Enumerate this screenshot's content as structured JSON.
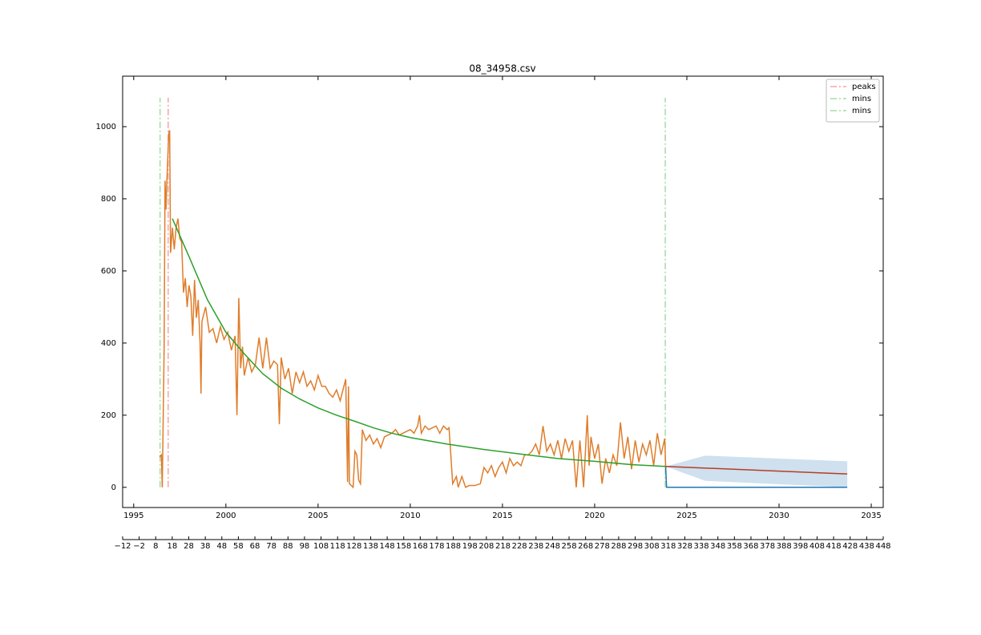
{
  "chart_data": {
    "type": "line",
    "title": "08_34958.csv",
    "xlim": [
      1994.4,
      2035.65
    ],
    "xticks": [
      1995,
      2000,
      2005,
      2010,
      2015,
      2020,
      2025,
      2030,
      2035
    ],
    "ylim": [
      -56,
      1140
    ],
    "yticks": [
      0,
      200,
      400,
      600,
      800,
      1000
    ],
    "x2lim": [
      -12,
      448
    ],
    "x2ticks": [
      {
        "value": -12,
        "label": "−12"
      },
      {
        "value": -2,
        "label": "−2"
      },
      8,
      18,
      28,
      38,
      48,
      58,
      68,
      78,
      88,
      98,
      108,
      118,
      128,
      138,
      148,
      158,
      168,
      178,
      188,
      198,
      208,
      218,
      228,
      238,
      248,
      258,
      268,
      278,
      288,
      298,
      308,
      318,
      328,
      338,
      348,
      358,
      368,
      378,
      388,
      398,
      408,
      418,
      428,
      438,
      448
    ],
    "legend": "upper right",
    "band": {
      "color": "#cfe0ef",
      "x": [
        2023.85,
        2026,
        2033.7
      ],
      "upper": [
        58,
        88,
        72
      ],
      "lower": [
        58,
        18,
        0
      ]
    },
    "lines": [
      {
        "color": "#1f77b4",
        "x": [
          2023.85,
          2023.9,
          2033.7
        ],
        "values": [
          58,
          0,
          0
        ]
      },
      {
        "color": "#df7d2a",
        "x": [
          1996.4,
          1996.5,
          1996.55,
          1996.65,
          1996.7,
          1996.75,
          1996.8,
          1996.9,
          1996.95,
          1997.0,
          1997.1,
          1997.2,
          1997.3,
          1997.4,
          1997.5,
          1997.6,
          1997.7,
          1997.8,
          1997.9,
          1998.0,
          1998.1,
          1998.2,
          1998.3,
          1998.4,
          1998.5,
          1998.6,
          1998.65,
          1998.7,
          1998.9,
          1999.1,
          1999.3,
          1999.5,
          1999.7,
          1999.9,
          2000.1,
          2000.3,
          2000.5,
          2000.6,
          2000.7,
          2000.8,
          2000.9,
          2001.0,
          2001.2,
          2001.4,
          2001.6,
          2001.8,
          2002.0,
          2002.2,
          2002.4,
          2002.6,
          2002.8,
          2002.9,
          2003.0,
          2003.2,
          2003.4,
          2003.6,
          2003.8,
          2004.0,
          2004.2,
          2004.4,
          2004.6,
          2004.8,
          2005.0,
          2005.2,
          2005.4,
          2005.6,
          2005.8,
          2006.0,
          2006.2,
          2006.4,
          2006.5,
          2006.6,
          2006.65,
          2006.7,
          2006.9,
          2007.0,
          2007.1,
          2007.2,
          2007.3,
          2007.4,
          2007.6,
          2007.8,
          2008.0,
          2008.2,
          2008.4,
          2008.6,
          2008.8,
          2009.0,
          2009.2,
          2009.4,
          2009.6,
          2009.8,
          2010.0,
          2010.2,
          2010.4,
          2010.5,
          2010.6,
          2010.8,
          2011.0,
          2011.2,
          2011.4,
          2011.6,
          2011.8,
          2012.0,
          2012.1,
          2012.2,
          2012.3,
          2012.5,
          2012.6,
          2012.8,
          2013.0,
          2013.2,
          2013.5,
          2013.8,
          2014.0,
          2014.2,
          2014.4,
          2014.6,
          2014.8,
          2015.0,
          2015.2,
          2015.4,
          2015.6,
          2015.8,
          2016.0,
          2016.2,
          2016.4,
          2016.6,
          2016.8,
          2017.0,
          2017.2,
          2017.4,
          2017.6,
          2017.8,
          2018.0,
          2018.2,
          2018.4,
          2018.6,
          2018.8,
          2019.0,
          2019.2,
          2019.4,
          2019.6,
          2019.7,
          2019.8,
          2020.0,
          2020.2,
          2020.4,
          2020.6,
          2020.8,
          2021.0,
          2021.2,
          2021.4,
          2021.6,
          2021.8,
          2022.0,
          2022.2,
          2022.4,
          2022.6,
          2022.8,
          2023.0,
          2023.2,
          2023.4,
          2023.6,
          2023.8,
          2023.85
        ],
        "values": [
          85,
          90,
          0,
          380,
          850,
          770,
          850,
          980,
          990,
          650,
          720,
          660,
          720,
          745,
          690,
          680,
          540,
          580,
          500,
          560,
          530,
          420,
          575,
          470,
          520,
          400,
          260,
          460,
          500,
          430,
          440,
          400,
          445,
          410,
          430,
          380,
          420,
          200,
          525,
          330,
          390,
          310,
          360,
          320,
          340,
          415,
          330,
          415,
          330,
          350,
          340,
          175,
          360,
          300,
          330,
          260,
          320,
          290,
          320,
          280,
          295,
          270,
          310,
          280,
          280,
          260,
          250,
          270,
          240,
          280,
          300,
          15,
          280,
          10,
          0,
          100,
          90,
          20,
          10,
          160,
          130,
          145,
          120,
          135,
          110,
          140,
          145,
          150,
          160,
          145,
          150,
          155,
          160,
          150,
          170,
          200,
          150,
          170,
          160,
          165,
          170,
          150,
          170,
          160,
          165,
          90,
          10,
          30,
          0,
          30,
          0,
          5,
          5,
          10,
          55,
          40,
          60,
          30,
          55,
          70,
          40,
          80,
          60,
          70,
          60,
          90,
          90,
          100,
          120,
          90,
          170,
          100,
          120,
          90,
          130,
          80,
          135,
          100,
          130,
          0,
          130,
          0,
          200,
          60,
          140,
          80,
          120,
          10,
          80,
          40,
          90,
          60,
          180,
          80,
          140,
          50,
          130,
          70,
          120,
          90,
          130,
          60,
          150,
          90,
          135,
          58
        ]
      },
      {
        "color": "#2ca02c",
        "x": [
          1997.1,
          1998,
          1999,
          2000,
          2001,
          2002,
          2003,
          2004,
          2005,
          2006,
          2007,
          2008,
          2009,
          2010,
          2012,
          2014,
          2016,
          2018,
          2020,
          2022,
          2023.85
        ],
        "values": [
          745,
          640,
          520,
          430,
          370,
          315,
          275,
          245,
          220,
          200,
          183,
          165,
          150,
          138,
          120,
          105,
          92,
          80,
          72,
          63,
          58
        ]
      },
      {
        "color": "#b73d25",
        "x": [
          2023.85,
          2033.7
        ],
        "values": [
          58,
          37
        ]
      }
    ],
    "vlines_ylim": [
      0,
      1080
    ],
    "vlines": [
      {
        "name": "peaks",
        "color": "#f4a6a6",
        "x": [
          1996.87
        ]
      },
      {
        "name": "mins",
        "color": "#a6dba6",
        "x": [
          1996.43
        ]
      },
      {
        "name": "mins",
        "color": "#a6dba6",
        "x": [
          2023.83
        ]
      }
    ]
  }
}
